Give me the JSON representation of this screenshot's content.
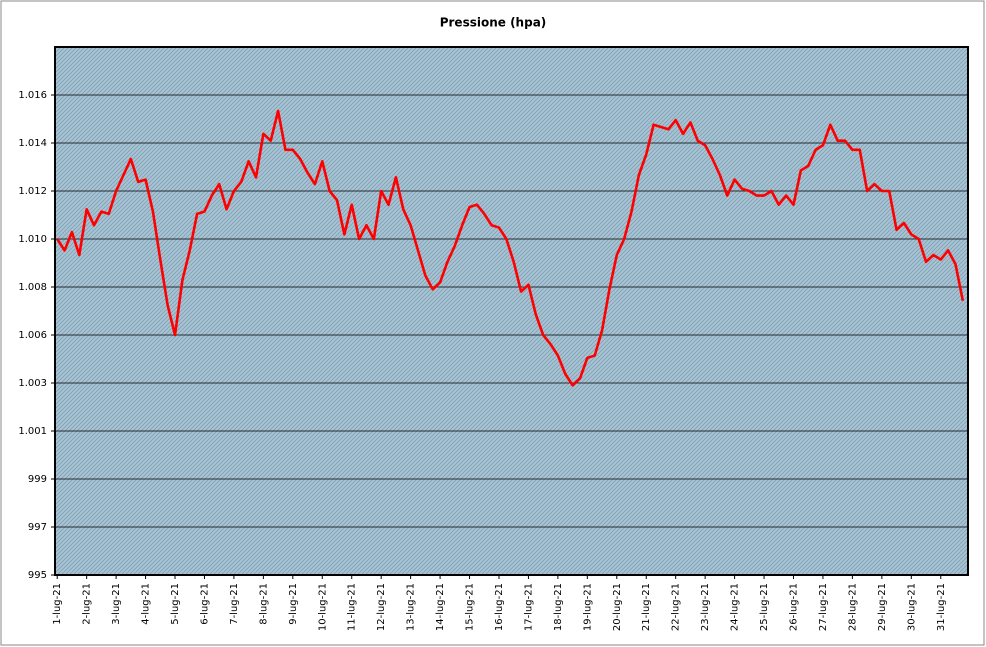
{
  "chart_data": {
    "type": "line",
    "title": "Pressione (hpa)",
    "categories": [
      "1-lug-21",
      null,
      null,
      null,
      "2-lug-21",
      null,
      null,
      null,
      "3-lug-21",
      null,
      null,
      null,
      "4-lug-21",
      null,
      null,
      null,
      "5-lug-21",
      null,
      null,
      null,
      "6-lug-21",
      null,
      null,
      null,
      "7-lug-21",
      null,
      null,
      null,
      "8-lug-21",
      null,
      null,
      null,
      "9-lug-21",
      null,
      null,
      null,
      "10-lug-21",
      null,
      null,
      null,
      "11-lug-21",
      null,
      null,
      null,
      "12-lug-21",
      null,
      null,
      null,
      "13-lug-21",
      null,
      null,
      null,
      "14-lug-21",
      null,
      null,
      null,
      "15-lug-21",
      null,
      null,
      null,
      "16-lug-21",
      null,
      null,
      null,
      "17-lug-21",
      null,
      null,
      null,
      "18-lug-21",
      null,
      null,
      null,
      "19-lug-21",
      null,
      null,
      null,
      "20-lug-21",
      null,
      null,
      null,
      "21-lug-21",
      null,
      null,
      null,
      "22-lug-21",
      null,
      null,
      null,
      "23-lug-21",
      null,
      null,
      null,
      "24-lug-21",
      null,
      null,
      null,
      "25-lug-21",
      null,
      null,
      null,
      "26-lug-21",
      null,
      null,
      null,
      "27-lug-21",
      null,
      null,
      null,
      "28-lug-21",
      null,
      null,
      null,
      "29-lug-21",
      null,
      null,
      null,
      "30-lug-21",
      null,
      null,
      null,
      "31-lug-21",
      null,
      null,
      null
    ],
    "series": [
      {
        "color": "#ff0000",
        "values": [
          1009.7,
          1009.2,
          1010.0,
          1009.0,
          1011.0,
          1010.3,
          1010.9,
          1010.8,
          1011.8,
          1012.5,
          1013.2,
          1012.2,
          1012.3,
          1010.9,
          1008.8,
          1006.8,
          1005.5,
          1007.9,
          1009.2,
          1010.8,
          1010.9,
          1011.6,
          1012.1,
          1011.0,
          1011.8,
          1012.2,
          1013.1,
          1012.4,
          1014.3,
          1014.0,
          1015.3,
          1013.6,
          1013.6,
          1013.2,
          1012.6,
          1012.1,
          1013.1,
          1011.8,
          1011.4,
          1009.9,
          1011.2,
          1009.7,
          1010.3,
          1009.7,
          1011.8,
          1011.2,
          1012.4,
          1011.0,
          1010.3,
          1009.2,
          1008.1,
          1007.5,
          1007.8,
          1008.7,
          1009.4,
          1010.3,
          1011.1,
          1011.2,
          1010.8,
          1010.3,
          1010.2,
          1009.7,
          1008.7,
          1007.4,
          1007.7,
          1006.4,
          1005.5,
          1005.1,
          1004.6,
          1003.8,
          1003.3,
          1003.6,
          1004.5,
          1004.6,
          1005.7,
          1007.5,
          1009.0,
          1009.7,
          1010.9,
          1012.5,
          1013.4,
          1014.7,
          1014.6,
          1014.5,
          1014.9,
          1014.3,
          1014.8,
          1014.0,
          1013.8,
          1013.2,
          1012.5,
          1011.6,
          1012.3,
          1011.9,
          1011.8,
          1011.6,
          1011.6,
          1011.8,
          1011.2,
          1011.6,
          1011.2,
          1012.7,
          1012.9,
          1013.6,
          1013.8,
          1014.7,
          1014.0,
          1014.0,
          1013.6,
          1013.6,
          1011.8,
          1012.1,
          1011.8,
          1011.8,
          1010.1,
          1010.4,
          1009.9,
          1009.7,
          1008.7,
          1009.0,
          1008.8,
          1009.2,
          1008.6,
          1007.0
        ]
      }
    ],
    "ylim": [
      995,
      1018.1
    ],
    "yticks": [
      995,
      {
        "value": 997.1,
        "label": "997"
      },
      {
        "value": 999.2,
        "label": "999"
      },
      {
        "value": 1001.3,
        "label": "1.001"
      },
      {
        "value": 1003.4,
        "label": "1.003"
      },
      {
        "value": 1005.5,
        "label": "1.006"
      },
      {
        "value": 1007.6,
        "label": "1.008"
      },
      {
        "value": 1009.7,
        "label": "1.010"
      },
      {
        "value": 1011.8,
        "label": "1.012"
      },
      {
        "value": 1013.9,
        "label": "1.014"
      },
      {
        "value": 1016,
        "label": "1.016"
      }
    ],
    "grid": true
  }
}
